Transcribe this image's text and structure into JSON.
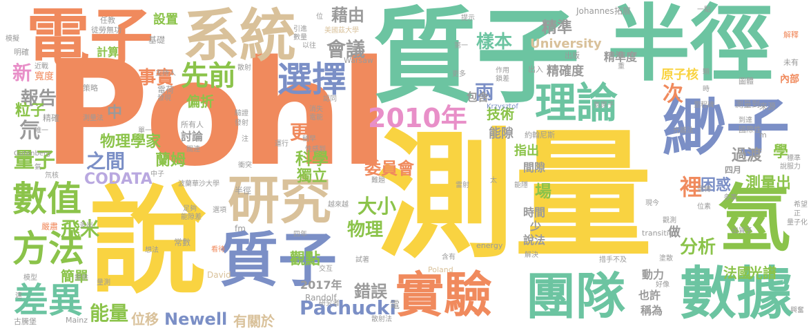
{
  "words": [
    {
      "text": "Pohl",
      "color": "#f08a5d",
      "vertical": false
    },
    {
      "text": "測量",
      "color": "#f9d341",
      "vertical": false
    },
    {
      "text": "質子",
      "color": "#6cc4a1",
      "vertical": false
    },
    {
      "text": "半徑",
      "color": "#6cc4a1",
      "vertical": false
    },
    {
      "text": "說",
      "color": "#f9d341",
      "vertical": false
    },
    {
      "text": "電子",
      "color": "#f08a5d",
      "vertical": false
    },
    {
      "text": "系統",
      "color": "#d9c19a",
      "vertical": false
    },
    {
      "text": "緲子",
      "color": "#7b8fc6",
      "vertical": false
    },
    {
      "text": "質子",
      "color": "#7b8fc6",
      "vertical": false
    },
    {
      "text": "研究",
      "color": "#d9c19a",
      "vertical": false
    },
    {
      "text": "氫",
      "color": "#8bc34a",
      "vertical": false
    },
    {
      "text": "實驗",
      "color": "#f08a5d",
      "vertical": false
    },
    {
      "text": "團隊",
      "color": "#6cc4a1",
      "vertical": false
    },
    {
      "text": "數據",
      "color": "#6cc4a1",
      "vertical": false
    },
    {
      "text": "理論",
      "color": "#6cc4a1",
      "vertical": false
    },
    {
      "text": "方法",
      "color": "#8bc34a",
      "vertical": false
    },
    {
      "text": "數值",
      "color": "#8bc34a",
      "vertical": false
    },
    {
      "text": "差異",
      "color": "#6cc4a1",
      "vertical": false
    },
    {
      "text": "選擇",
      "color": "#7b8fc6",
      "vertical": false
    },
    {
      "text": "先前",
      "color": "#8bc34a",
      "vertical": false
    },
    {
      "text": "2010年",
      "color": "#e88fc8",
      "vertical": false
    },
    {
      "text": "氘",
      "color": "#9a9a9a",
      "vertical": false
    },
    {
      "text": "Pachucki",
      "color": "#7b8fc6",
      "vertical": false
    },
    {
      "text": "Newell",
      "color": "#7b8fc6",
      "vertical": false
    },
    {
      "text": "CODATA",
      "color": "#b9a8e0",
      "vertical": false
    },
    {
      "text": "量子",
      "color": "#8bc34a",
      "vertical": false
    },
    {
      "text": "飛米",
      "color": "#8bc34a",
      "vertical": false
    },
    {
      "text": "之間",
      "color": "#7b8fc6",
      "vertical": false
    },
    {
      "text": "物理學家",
      "color": "#8bc34a",
      "vertical": false
    },
    {
      "text": "大小",
      "color": "#8bc34a",
      "vertical": false
    },
    {
      "text": "物理",
      "color": "#8bc34a",
      "vertical": false
    },
    {
      "text": "科學",
      "color": "#8bc34a",
      "vertical": false
    },
    {
      "text": "委員會",
      "color": "#f08a5d",
      "vertical": false
    },
    {
      "text": "錯誤",
      "color": "#9a9a9a",
      "vertical": false
    },
    {
      "text": "2017年",
      "color": "#9a9a9a",
      "vertical": false
    },
    {
      "text": "有關於",
      "color": "#d9c19a",
      "vertical": false
    },
    {
      "text": "能量",
      "color": "#8bc34a",
      "vertical": false
    },
    {
      "text": "位移",
      "color": "#d9c19a",
      "vertical": false
    },
    {
      "text": "簡單",
      "color": "#8bc34a",
      "vertical": false
    },
    {
      "text": "報告",
      "color": "#9a9a9a",
      "vertical": false
    },
    {
      "text": "新",
      "color": "#e88fc8",
      "vertical": false
    },
    {
      "text": "粒子",
      "color": "#8bc34a",
      "vertical": false
    },
    {
      "text": "事實",
      "color": "#f08a5d",
      "vertical": false
    },
    {
      "text": "計算",
      "color": "#8bc34a",
      "vertical": false
    },
    {
      "text": "設置",
      "color": "#8bc34a",
      "vertical": false
    },
    {
      "text": "會議",
      "color": "#9a9a9a",
      "vertical": false
    },
    {
      "text": "藉由",
      "color": "#9a9a9a",
      "vertical": false
    },
    {
      "text": "樣本",
      "color": "#6cc4a1",
      "vertical": false
    },
    {
      "text": "精準",
      "color": "#9a9a9a",
      "vertical": false
    },
    {
      "text": "University",
      "color": "#d9c19a",
      "vertical": false
    },
    {
      "text": "精確度",
      "color": "#9a9a9a",
      "vertical": false
    },
    {
      "text": "精準度",
      "color": "#9a9a9a",
      "vertical": false
    },
    {
      "text": "原子核",
      "color": "#f9d341",
      "vertical": false
    },
    {
      "text": "次",
      "color": "#f08a5d",
      "vertical": false
    },
    {
      "text": "技術",
      "color": "#8bc34a",
      "vertical": false
    },
    {
      "text": "能隙",
      "color": "#9a9a9a",
      "vertical": false
    },
    {
      "text": "指出",
      "color": "#8bc34a",
      "vertical": false
    },
    {
      "text": "間隙",
      "color": "#9a9a9a",
      "vertical": false
    },
    {
      "text": "時間",
      "color": "#9a9a9a",
      "vertical": false
    },
    {
      "text": "場",
      "color": "#8bc34a",
      "vertical": false
    },
    {
      "text": "少",
      "color": "#9a9a9a",
      "vertical": false
    },
    {
      "text": "說法",
      "color": "#9a9a9a",
      "vertical": false
    },
    {
      "text": "分析",
      "color": "#8bc34a",
      "vertical": false
    },
    {
      "text": "裡",
      "color": "#f08a5d",
      "vertical": false
    },
    {
      "text": "困惑",
      "color": "#7b8fc6",
      "vertical": false
    },
    {
      "text": "測量出",
      "color": "#8bc34a",
      "vertical": false
    },
    {
      "text": "過渡",
      "color": "#9a9a9a",
      "vertical": false
    },
    {
      "text": "光譜",
      "color": "#8bc34a",
      "vertical": false
    },
    {
      "text": "法國",
      "color": "#8bc34a",
      "vertical": false
    },
    {
      "text": "動力",
      "color": "#9a9a9a",
      "vertical": false
    },
    {
      "text": "也許",
      "color": "#9a9a9a",
      "vertical": false
    },
    {
      "text": "稱為",
      "color": "#9a9a9a",
      "vertical": false
    },
    {
      "text": "觀點",
      "color": "#8bc34a",
      "vertical": false
    },
    {
      "text": "獨立",
      "color": "#8bc34a",
      "vertical": false
    },
    {
      "text": "蘭姆",
      "color": "#8bc34a",
      "vertical": false
    },
    {
      "text": "更",
      "color": "#f08a5d",
      "vertical": false
    },
    {
      "text": "偏折",
      "color": "#8bc34a",
      "vertical": false
    },
    {
      "text": "討論",
      "color": "#9a9a9a",
      "vertical": false
    },
    {
      "text": "中",
      "color": "#9a9a9a",
      "vertical": false
    },
    {
      "text": "兩",
      "color": "#7b8fc6",
      "vertical": false
    },
    {
      "text": "包含",
      "color": "#9a9a9a",
      "vertical": false
    },
    {
      "text": "內部",
      "color": "#f08a5d",
      "vertical": false
    },
    {
      "text": "做",
      "color": "#9a9a9a",
      "vertical": false
    },
    {
      "text": "學",
      "color": "#8bc34a",
      "vertical": false
    },
    {
      "text": "四月",
      "color": "#9a9a9a",
      "vertical": false
    },
    {
      "text": "Gutenberg",
      "color": "#9a9a9a",
      "vertical": false
    },
    {
      "text": "Johannes",
      "color": "#9a9a9a",
      "vertical": false
    },
    {
      "text": "Warsaw",
      "color": "#9a9a9a",
      "vertical": false
    },
    {
      "text": "Krzysztof",
      "color": "#7b8fc6",
      "vertical": false
    },
    {
      "text": "Randolf",
      "color": "#9a9a9a",
      "vertical": false
    },
    {
      "text": "Poland",
      "color": "#d9c19a",
      "vertical": false
    },
    {
      "text": "David",
      "color": "#d9c19a",
      "vertical": false
    },
    {
      "text": "Mainz",
      "color": "#9a9a9a",
      "vertical": false
    },
    {
      "text": "energy",
      "color": "#9a9a9a",
      "vertical": false
    },
    {
      "text": "transition",
      "color": "#9a9a9a",
      "vertical": false
    },
    {
      "text": "fm",
      "color": "#9a9a9a",
      "vertical": false
    },
    {
      "text": "m",
      "color": "#9a9a9a",
      "vertical": false
    },
    {
      "text": "電荷",
      "color": "#9a9a9a",
      "vertical": false
    },
    {
      "text": "發現",
      "color": "#9a9a9a",
      "vertical": false
    },
    {
      "text": "主持人",
      "color": "#9a9a9a",
      "vertical": false
    },
    {
      "text": "策略",
      "color": "#9a9a9a",
      "vertical": false
    },
    {
      "text": "精確",
      "color": "#9a9a9a",
      "vertical": false
    },
    {
      "text": "測量法",
      "color": "#9a9a9a",
      "vertical": false
    },
    {
      "text": "寬度",
      "color": "#f08a5d",
      "vertical": false
    },
    {
      "text": "近戰",
      "color": "#9a9a9a",
      "vertical": false
    },
    {
      "text": "明確",
      "color": "#9a9a9a",
      "vertical": false
    },
    {
      "text": "模擬",
      "color": "#9a9a9a",
      "vertical": false
    },
    {
      "text": "基礎",
      "color": "#9a9a9a",
      "vertical": false
    },
    {
      "text": "徒勞無功",
      "color": "#9a9a9a",
      "vertical": false
    },
    {
      "text": "任教",
      "color": "#9a9a9a",
      "vertical": false
    },
    {
      "text": "所有人",
      "color": "#9a9a9a",
      "vertical": false
    },
    {
      "text": "關連",
      "color": "#9a9a9a",
      "vertical": false
    },
    {
      "text": "單一",
      "color": "#9a9a9a",
      "vertical": false
    },
    {
      "text": "唯一",
      "color": "#9a9a9a",
      "vertical": false
    },
    {
      "text": "氣",
      "color": "#9a9a9a",
      "vertical": false
    },
    {
      "text": "氘核",
      "color": "#9a9a9a",
      "vertical": false
    },
    {
      "text": "中子",
      "color": "#9a9a9a",
      "vertical": false
    },
    {
      "text": "波蘭華沙大學",
      "color": "#9a9a9a",
      "vertical": false
    },
    {
      "text": "足夠",
      "color": "#9a9a9a",
      "vertical": false
    },
    {
      "text": "能隙差",
      "color": "#9a9a9a",
      "vertical": false
    },
    {
      "text": "選項",
      "color": "#9a9a9a",
      "vertical": false
    },
    {
      "text": "嚴肅",
      "color": "#f08a5d",
      "vertical": false
    },
    {
      "text": "多出",
      "color": "#9a9a9a",
      "vertical": false
    },
    {
      "text": "提供",
      "color": "#9a9a9a",
      "vertical": false
    },
    {
      "text": "模型",
      "color": "#9a9a9a",
      "vertical": false
    },
    {
      "text": "古騰堡",
      "color": "#9a9a9a",
      "vertical": false
    },
    {
      "text": "量測",
      "color": "#9a9a9a",
      "vertical": false
    },
    {
      "text": "想法",
      "color": "#9a9a9a",
      "vertical": false
    },
    {
      "text": "常數",
      "color": "#9a9a9a",
      "vertical": false
    },
    {
      "text": "看待",
      "color": "#f08a5d",
      "vertical": false
    },
    {
      "text": "交互",
      "color": "#9a9a9a",
      "vertical": false
    },
    {
      "text": "四年",
      "color": "#9a9a9a",
      "vertical": false
    },
    {
      "text": "研究者",
      "color": "#9a9a9a",
      "vertical": false
    },
    {
      "text": "電",
      "color": "#9a9a9a",
      "vertical": false
    },
    {
      "text": "試著",
      "color": "#9a9a9a",
      "vertical": false
    },
    {
      "text": "散射法",
      "color": "#9a9a9a",
      "vertical": false
    },
    {
      "text": "含有",
      "color": "#9a9a9a",
      "vertical": false
    },
    {
      "text": "越來越",
      "color": "#9a9a9a",
      "vertical": false
    },
    {
      "text": "難題",
      "color": "#9a9a9a",
      "vertical": false
    },
    {
      "text": "雷射",
      "color": "#9a9a9a",
      "vertical": false
    },
    {
      "text": "太",
      "color": "#9a9a9a",
      "vertical": false
    },
    {
      "text": "能隱",
      "color": "#9a9a9a",
      "vertical": false
    },
    {
      "text": "半徑",
      "color": "#9a9a9a",
      "vertical": false
    },
    {
      "text": "衝突",
      "color": "#9a9a9a",
      "vertical": false
    },
    {
      "text": "注",
      "color": "#9a9a9a",
      "vertical": false
    },
    {
      "text": "運行",
      "color": "#9a9a9a",
      "vertical": false
    },
    {
      "text": "性感到",
      "color": "#9a9a9a",
      "vertical": false
    },
    {
      "text": "稍早",
      "color": "#9a9a9a",
      "vertical": false
    },
    {
      "text": "驗證",
      "color": "#9a9a9a",
      "vertical": false
    },
    {
      "text": "發射",
      "color": "#9a9a9a",
      "vertical": false
    },
    {
      "text": "消失",
      "color": "#9a9a9a",
      "vertical": false
    },
    {
      "text": "電能",
      "color": "#9a9a9a",
      "vertical": false
    },
    {
      "text": "認同",
      "color": "#9a9a9a",
      "vertical": false
    },
    {
      "text": "散射",
      "color": "#9a9a9a",
      "vertical": false
    },
    {
      "text": "引進",
      "color": "#9a9a9a",
      "vertical": false
    },
    {
      "text": "美國茲大學",
      "color": "#d9c19a",
      "vertical": false
    },
    {
      "text": "提示",
      "color": "#9a9a9a",
      "vertical": false
    },
    {
      "text": "數量",
      "color": "#9a9a9a",
      "vertical": false
    },
    {
      "text": "以往",
      "color": "#9a9a9a",
      "vertical": false
    },
    {
      "text": "位",
      "color": "#9a9a9a",
      "vertical": false
    },
    {
      "text": "第一",
      "color": "#9a9a9a",
      "vertical": false
    },
    {
      "text": "更多",
      "color": "#9a9a9a",
      "vertical": false
    },
    {
      "text": "作用",
      "color": "#9a9a9a",
      "vertical": false
    },
    {
      "text": "鎖差",
      "color": "#9a9a9a",
      "vertical": false
    },
    {
      "text": "出入",
      "color": "#9a9a9a",
      "vertical": false
    },
    {
      "text": "出版",
      "color": "#9a9a9a",
      "vertical": false
    },
    {
      "text": "約翰尼斯",
      "color": "#9a9a9a",
      "vertical": false
    },
    {
      "text": "氫原子",
      "color": "#9a9a9a",
      "vertical": false
    },
    {
      "text": "里程碑",
      "color": "#9a9a9a",
      "vertical": false
    },
    {
      "text": "測量到",
      "color": "#9a9a9a",
      "vertical": false
    },
    {
      "text": "來源",
      "color": "#9a9a9a",
      "vertical": false
    },
    {
      "text": "圖體",
      "color": "#9a9a9a",
      "vertical": false
    },
    {
      "text": "國際性",
      "color": "#9a9a9a",
      "vertical": false
    },
    {
      "text": "光譜法",
      "color": "#9a9a9a",
      "vertical": false
    },
    {
      "text": "到達",
      "color": "#9a9a9a",
      "vertical": false
    },
    {
      "text": "標準",
      "color": "#9a9a9a",
      "vertical": false
    },
    {
      "text": "說服力",
      "color": "#9a9a9a",
      "vertical": false
    },
    {
      "text": "拓展",
      "color": "#9a9a9a",
      "vertical": false
    },
    {
      "text": "一點",
      "color": "#9a9a9a",
      "vertical": false
    },
    {
      "text": "解釋",
      "color": "#f08a5d",
      "vertical": false
    },
    {
      "text": "未有",
      "color": "#9a9a9a",
      "vertical": false
    },
    {
      "text": "希望",
      "color": "#9a9a9a",
      "vertical": false
    },
    {
      "text": "正",
      "color": "#9a9a9a",
      "vertical": false
    },
    {
      "text": "量子化",
      "color": "#9a9a9a",
      "vertical": false
    },
    {
      "text": "多事",
      "color": "#9a9a9a",
      "vertical": false
    },
    {
      "text": "位素",
      "color": "#9a9a9a",
      "vertical": false
    },
    {
      "text": "運轉",
      "color": "#9a9a9a",
      "vertical": false
    },
    {
      "text": "觀測",
      "color": "#9a9a9a",
      "vertical": false
    },
    {
      "text": "現今",
      "color": "#9a9a9a",
      "vertical": false
    },
    {
      "text": "出質子",
      "color": "#9a9a9a",
      "vertical": false
    },
    {
      "text": "好像",
      "color": "#9a9a9a",
      "vertical": false
    },
    {
      "text": "塗散",
      "color": "#9a9a9a",
      "vertical": false
    },
    {
      "text": "措手不及",
      "color": "#9a9a9a",
      "vertical": false
    },
    {
      "text": "解決",
      "color": "#9a9a9a",
      "vertical": false
    },
    {
      "text": "興奮",
      "color": "#9a9a9a",
      "vertical": false
    },
    {
      "text": "時",
      "color": "#9a9a9a",
      "vertical": false
    },
    {
      "text": "遠",
      "color": "#9a9a9a",
      "vertical": false
    },
    {
      "text": "顆",
      "color": "#9a9a9a",
      "vertical": false
    },
    {
      "text": "重",
      "color": "#9a9a9a",
      "vertical": false
    }
  ]
}
